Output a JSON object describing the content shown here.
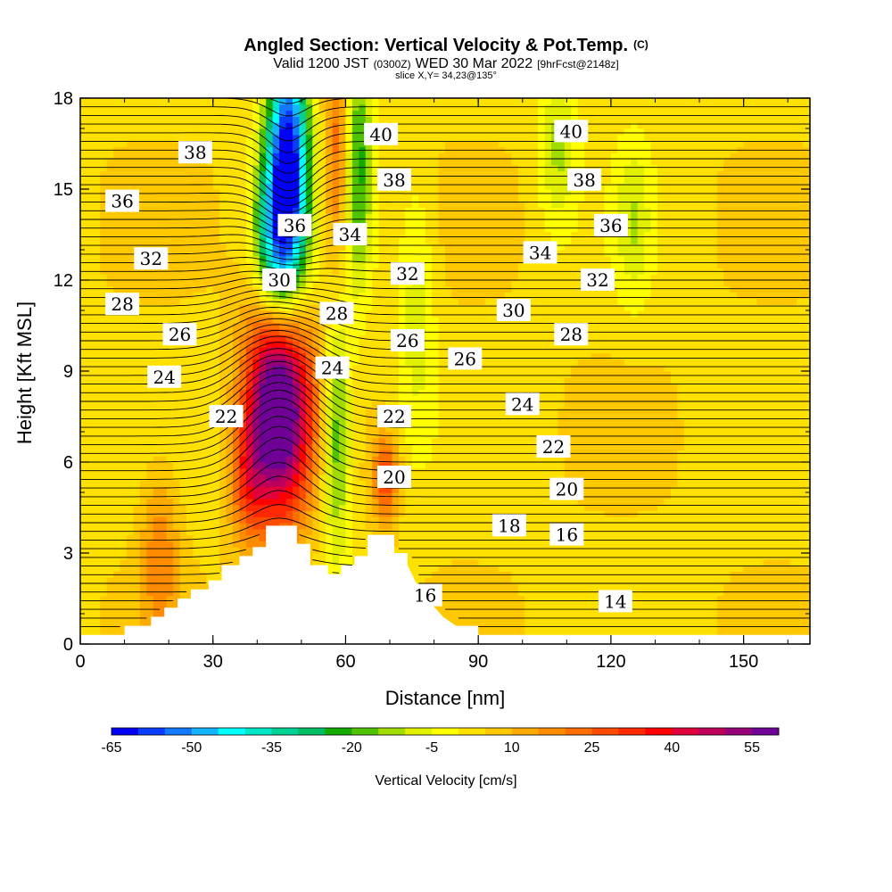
{
  "chart_data": {
    "type": "heatmap",
    "title": "Angled Section: Vertical Velocity & Pot.Temp.",
    "title_mark": "(C)",
    "subtitle": {
      "a": "Valid 1200 JST",
      "b": "(0300Z)",
      "c": "WED 30 Mar 2022",
      "d": "[9hrFcst@2148z]"
    },
    "slice_text": "slice X,Y= 34,23@135°",
    "xlabel": "Distance [nm]",
    "ylabel": "Height [Kft MSL]",
    "xlim": [
      0,
      165
    ],
    "ylim": [
      0,
      18
    ],
    "x_ticks": [
      "0",
      "30",
      "60",
      "90",
      "120",
      "150"
    ],
    "y_ticks": [
      "0",
      "3",
      "6",
      "9",
      "12",
      "15",
      "18"
    ],
    "colorbar": {
      "label": "Vertical Velocity [cm/s]",
      "tick_labels": [
        "-65",
        "-50",
        "-35",
        "-20",
        "-5",
        "10",
        "25",
        "40",
        "55"
      ],
      "range": [
        -65,
        60
      ],
      "colors": [
        "#0000f5",
        "#0a3cff",
        "#1478ff",
        "#14b4ff",
        "#00ffff",
        "#00e6c8",
        "#00d296",
        "#00be64",
        "#14aa00",
        "#50c300",
        "#a0dc00",
        "#e1f000",
        "#ffff00",
        "#ffe100",
        "#ffc800",
        "#ffaa00",
        "#ff8c00",
        "#ff6e00",
        "#ff4b00",
        "#ff2800",
        "#ff0000",
        "#e1003c",
        "#be005a",
        "#960078",
        "#6e0096"
      ]
    },
    "theta_labels": [
      {
        "text": "38",
        "x": 26,
        "y": 16.2
      },
      {
        "text": "36",
        "x": 9.5,
        "y": 14.6
      },
      {
        "text": "32",
        "x": 16,
        "y": 12.7
      },
      {
        "text": "28",
        "x": 9.5,
        "y": 11.2
      },
      {
        "text": "26",
        "x": 22.5,
        "y": 10.2
      },
      {
        "text": "24",
        "x": 19,
        "y": 8.8
      },
      {
        "text": "22",
        "x": 33,
        "y": 7.5
      },
      {
        "text": "40",
        "x": 68,
        "y": 16.8
      },
      {
        "text": "38",
        "x": 71,
        "y": 15.3
      },
      {
        "text": "36",
        "x": 48.5,
        "y": 13.8
      },
      {
        "text": "34",
        "x": 61,
        "y": 13.5
      },
      {
        "text": "32",
        "x": 74,
        "y": 12.2
      },
      {
        "text": "30",
        "x": 45,
        "y": 12.0
      },
      {
        "text": "28",
        "x": 58,
        "y": 10.9
      },
      {
        "text": "26",
        "x": 74,
        "y": 10.0
      },
      {
        "text": "24",
        "x": 57,
        "y": 9.1
      },
      {
        "text": "22",
        "x": 71,
        "y": 7.5
      },
      {
        "text": "20",
        "x": 71,
        "y": 5.5
      },
      {
        "text": "26",
        "x": 87,
        "y": 9.4
      },
      {
        "text": "24",
        "x": 100,
        "y": 7.9
      },
      {
        "text": "22",
        "x": 107,
        "y": 6.5
      },
      {
        "text": "20",
        "x": 110,
        "y": 5.1
      },
      {
        "text": "18",
        "x": 97,
        "y": 3.9
      },
      {
        "text": "16",
        "x": 110,
        "y": 3.6
      },
      {
        "text": "16",
        "x": 78,
        "y": 1.6
      },
      {
        "text": "14",
        "x": 121,
        "y": 1.4
      },
      {
        "text": "40",
        "x": 111,
        "y": 16.9
      },
      {
        "text": "38",
        "x": 114,
        "y": 15.3
      },
      {
        "text": "36",
        "x": 120,
        "y": 13.8
      },
      {
        "text": "34",
        "x": 104,
        "y": 12.9
      },
      {
        "text": "32",
        "x": 117,
        "y": 12.0
      },
      {
        "text": "30",
        "x": 98,
        "y": 11.0
      },
      {
        "text": "28",
        "x": 111,
        "y": 10.2
      }
    ],
    "terrain_kft": [
      [
        0,
        0.3
      ],
      [
        10,
        0.3
      ],
      [
        10,
        0.6
      ],
      [
        16,
        0.6
      ],
      [
        16,
        0.9
      ],
      [
        19,
        0.9
      ],
      [
        19,
        1.2
      ],
      [
        22,
        1.2
      ],
      [
        22,
        1.5
      ],
      [
        25,
        1.5
      ],
      [
        25,
        1.8
      ],
      [
        29,
        1.8
      ],
      [
        29,
        2.1
      ],
      [
        32,
        2.1
      ],
      [
        32,
        2.6
      ],
      [
        36,
        2.6
      ],
      [
        36,
        2.9
      ],
      [
        39,
        2.9
      ],
      [
        39,
        3.2
      ],
      [
        42,
        3.2
      ],
      [
        42,
        3.9
      ],
      [
        49,
        3.9
      ],
      [
        49,
        3.3
      ],
      [
        52,
        3.3
      ],
      [
        52,
        2.6
      ],
      [
        56,
        2.6
      ],
      [
        56,
        2.3
      ],
      [
        59,
        2.3
      ],
      [
        59,
        2.6
      ],
      [
        62,
        2.6
      ],
      [
        62,
        2.9
      ],
      [
        65,
        2.9
      ],
      [
        65,
        3.6
      ],
      [
        71,
        3.6
      ],
      [
        71,
        3.0
      ],
      [
        74,
        3.0
      ],
      [
        74,
        2.6
      ],
      [
        76,
        2.0
      ],
      [
        79,
        1.4
      ],
      [
        82,
        0.9
      ],
      [
        85,
        0.6
      ],
      [
        90,
        0.6
      ],
      [
        90,
        0.3
      ],
      [
        165,
        0.3
      ]
    ],
    "velocity_features": [
      {
        "x": 45,
        "y": 8,
        "sx": 5,
        "sy": 2.6,
        "w": 70
      },
      {
        "x": 47,
        "y": 15.5,
        "sx": 3.3,
        "sy": 3.3,
        "w": -72
      },
      {
        "x": 43,
        "y": 13.2,
        "sx": 3,
        "sy": 2,
        "w": -30
      },
      {
        "x": 58,
        "y": 7,
        "sx": 2.3,
        "sy": 3,
        "w": -25
      },
      {
        "x": 63,
        "y": 16,
        "sx": 2.3,
        "sy": 3,
        "w": -25
      },
      {
        "x": 58,
        "y": 16,
        "sx": 2,
        "sy": 3,
        "w": 20
      },
      {
        "x": 69,
        "y": 5.5,
        "sx": 2,
        "sy": 1,
        "w": 25
      },
      {
        "x": 38,
        "y": 5.5,
        "sx": 3,
        "sy": 1.5,
        "w": 20
      },
      {
        "x": 108,
        "y": 16.5,
        "sx": 3,
        "sy": 2,
        "w": -15
      },
      {
        "x": 125,
        "y": 14,
        "sx": 3,
        "sy": 2,
        "w": -12
      },
      {
        "x": 76,
        "y": 11,
        "sx": 3,
        "sy": 3,
        "w": -12
      },
      {
        "x": 18,
        "y": 3,
        "sx": 3,
        "sy": 2,
        "w": 15
      }
    ]
  }
}
